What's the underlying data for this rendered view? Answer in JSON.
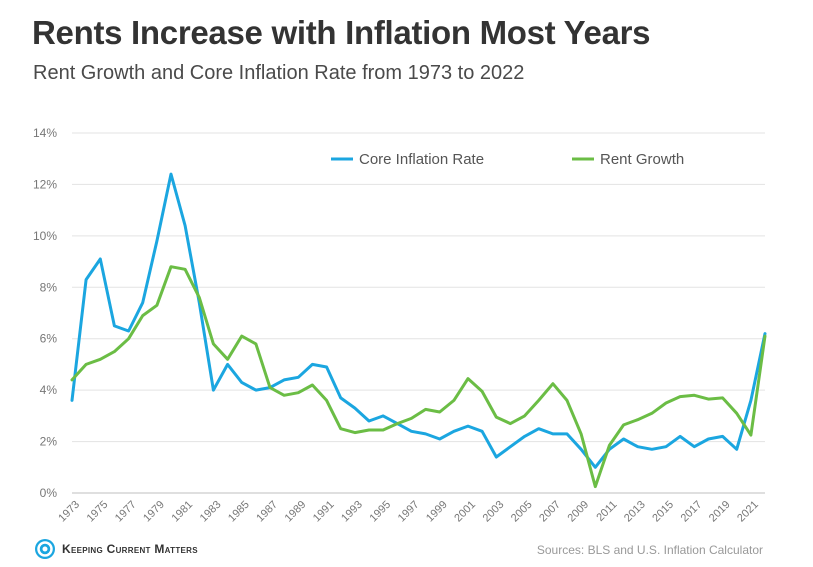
{
  "title": "Rents Increase with Inflation Most Years",
  "subtitle": "Rent Growth and Core Inflation Rate from 1973 to 2022",
  "brand": {
    "name": "Keeping Current Matters",
    "icon": "kcm-logo-icon"
  },
  "source": "Sources: BLS and U.S. Inflation Calculator",
  "chart_data": {
    "type": "line",
    "x": [
      1973,
      1974,
      1975,
      1976,
      1977,
      1978,
      1979,
      1980,
      1981,
      1982,
      1983,
      1984,
      1985,
      1986,
      1987,
      1988,
      1989,
      1990,
      1991,
      1992,
      1993,
      1994,
      1995,
      1996,
      1997,
      1998,
      1999,
      2000,
      2001,
      2002,
      2003,
      2004,
      2005,
      2006,
      2007,
      2008,
      2009,
      2010,
      2011,
      2012,
      2013,
      2014,
      2015,
      2016,
      2017,
      2018,
      2019,
      2020,
      2021,
      2022
    ],
    "xticks": [
      "1973",
      "1975",
      "1977",
      "1979",
      "1981",
      "1983",
      "1985",
      "1987",
      "1989",
      "1991",
      "1993",
      "1995",
      "1997",
      "1999",
      "2001",
      "2003",
      "2005",
      "2007",
      "2009",
      "2011",
      "2013",
      "2015",
      "2017",
      "2019",
      "2021"
    ],
    "ylim": [
      0,
      14
    ],
    "yticks": [
      "0%",
      "2%",
      "4%",
      "6%",
      "8%",
      "10%",
      "12%",
      "14%"
    ],
    "yticks_values": [
      0,
      2,
      4,
      6,
      8,
      10,
      12,
      14
    ],
    "grid": true,
    "legend_position": "top-right",
    "series": [
      {
        "name": "Core Inflation Rate",
        "color": "#1ba6e0",
        "values": [
          3.6,
          8.3,
          9.1,
          6.5,
          6.3,
          7.4,
          9.8,
          12.4,
          10.4,
          7.4,
          4.0,
          5.0,
          4.3,
          4.0,
          4.1,
          4.4,
          4.5,
          5.0,
          4.9,
          3.7,
          3.3,
          2.8,
          3.0,
          2.7,
          2.4,
          2.3,
          2.1,
          2.4,
          2.6,
          2.4,
          1.4,
          1.8,
          2.2,
          2.5,
          2.3,
          2.3,
          1.7,
          1.0,
          1.7,
          2.1,
          1.8,
          1.7,
          1.8,
          2.2,
          1.8,
          2.1,
          2.2,
          1.7,
          3.6,
          6.2
        ]
      },
      {
        "name": "Rent Growth",
        "color": "#6bbd45",
        "values": [
          4.4,
          5.0,
          5.2,
          5.5,
          6.0,
          6.9,
          7.3,
          8.8,
          8.7,
          7.6,
          5.8,
          5.2,
          6.1,
          5.8,
          4.1,
          3.8,
          3.9,
          4.2,
          3.6,
          2.5,
          2.35,
          2.45,
          2.45,
          2.7,
          2.9,
          3.25,
          3.15,
          3.6,
          4.45,
          3.95,
          2.95,
          2.7,
          3.0,
          3.6,
          4.25,
          3.6,
          2.3,
          0.25,
          1.85,
          2.65,
          2.85,
          3.1,
          3.5,
          3.75,
          3.8,
          3.65,
          3.7,
          3.1,
          2.25,
          6.1
        ]
      }
    ]
  }
}
